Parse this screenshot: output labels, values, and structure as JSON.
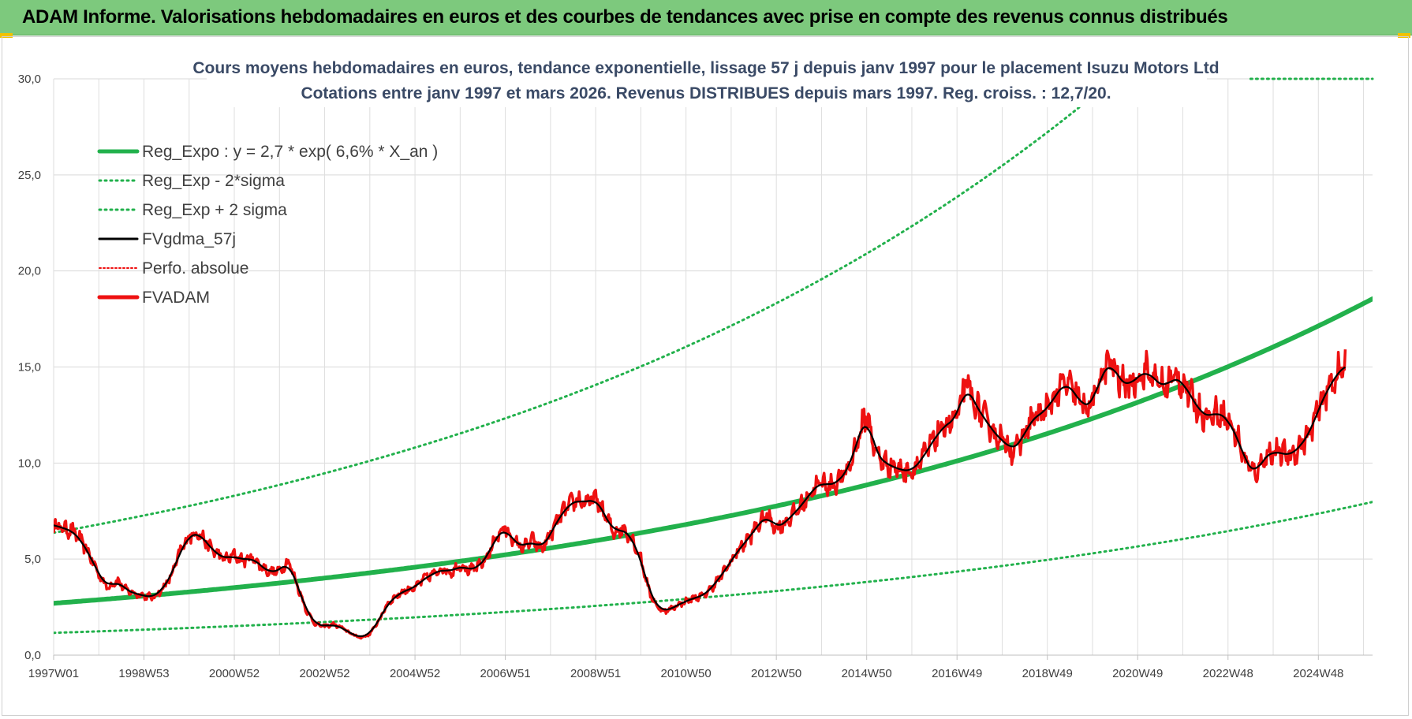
{
  "banner": {
    "title": "ADAM Informe. Valorisations hebdomadaires en euros et des courbes de tendances avec prise en compte des revenus connus distribués"
  },
  "colors": {
    "banner_bg": "#7dc97d",
    "trend_green": "#22b14c",
    "fv_red": "#ee1111",
    "smooth_black": "#000000"
  },
  "chart_data": {
    "type": "line",
    "title": "Cours moyens hebdomadaires en euros, tendance exponentielle, lissage 57 j depuis janv 1997 pour le placement Isuzu Motors Ltd",
    "subtitle": "Cotations entre janv 1997 et mars 2026. Revenus DISTRIBUES depuis mars 1997. Reg. croiss. : 12,7/20.",
    "xlabel": "",
    "ylabel": "",
    "x_tick_labels": [
      "1997W01",
      "1998W53",
      "2000W52",
      "2002W52",
      "2004W52",
      "2006W51",
      "2008W51",
      "2010W50",
      "2012W50",
      "2014W50",
      "2016W49",
      "2018W49",
      "2020W49",
      "2022W48",
      "2024W48"
    ],
    "x_range": [
      1997.0,
      2026.2
    ],
    "y_ticks": [
      "0,0",
      "5,0",
      "10,0",
      "15,0",
      "20,0",
      "25,0",
      "30,0"
    ],
    "ylim": [
      0,
      30
    ],
    "grid": true,
    "legend_position": "top-left",
    "trend": {
      "a": 2.7,
      "rate": 0.066,
      "sigma_factor_lower": 0.43,
      "sigma_factor_upper": 2.36
    },
    "series": [
      {
        "name": "Reg_Expo : y = 2,7 * exp( 6,6% *  X_an )",
        "style": "solid-thick",
        "color": "#22b14c"
      },
      {
        "name": "Reg_Exp - 2*sigma",
        "style": "dotted",
        "color": "#22b14c"
      },
      {
        "name": "Reg_Exp + 2 sigma",
        "style": "dotted",
        "color": "#22b14c"
      },
      {
        "name": "FVgdma_57j",
        "style": "solid",
        "color": "#000000"
      },
      {
        "name": "Perfo. absolue",
        "style": "dotted",
        "color": "#ee1111"
      },
      {
        "name": "FVADAM",
        "style": "solid-thick",
        "color": "#ee1111",
        "points": [
          [
            1997.0,
            6.8
          ],
          [
            1997.2,
            6.6
          ],
          [
            1997.4,
            6.5
          ],
          [
            1997.6,
            6.0
          ],
          [
            1997.8,
            5.2
          ],
          [
            1998.0,
            4.2
          ],
          [
            1998.2,
            3.5
          ],
          [
            1998.4,
            3.9
          ],
          [
            1998.6,
            3.4
          ],
          [
            1998.8,
            3.2
          ],
          [
            1999.0,
            3.1
          ],
          [
            1999.2,
            3.0
          ],
          [
            1999.4,
            3.4
          ],
          [
            1999.6,
            4.1
          ],
          [
            1999.8,
            5.4
          ],
          [
            2000.0,
            6.2
          ],
          [
            2000.2,
            6.4
          ],
          [
            2000.4,
            5.8
          ],
          [
            2000.6,
            5.3
          ],
          [
            2000.8,
            5.0
          ],
          [
            2001.0,
            5.2
          ],
          [
            2001.2,
            4.9
          ],
          [
            2001.4,
            5.1
          ],
          [
            2001.6,
            4.6
          ],
          [
            2001.8,
            4.3
          ],
          [
            2002.0,
            4.4
          ],
          [
            2002.2,
            4.9
          ],
          [
            2002.4,
            3.6
          ],
          [
            2002.6,
            2.3
          ],
          [
            2002.8,
            1.6
          ],
          [
            2003.0,
            1.5
          ],
          [
            2003.2,
            1.6
          ],
          [
            2003.4,
            1.4
          ],
          [
            2003.6,
            1.1
          ],
          [
            2003.8,
            0.9
          ],
          [
            2004.0,
            1.1
          ],
          [
            2004.2,
            1.8
          ],
          [
            2004.4,
            2.7
          ],
          [
            2004.6,
            3.1
          ],
          [
            2004.8,
            3.4
          ],
          [
            2005.0,
            3.5
          ],
          [
            2005.2,
            4.0
          ],
          [
            2005.4,
            4.2
          ],
          [
            2005.6,
            4.5
          ],
          [
            2005.8,
            4.3
          ],
          [
            2006.0,
            4.7
          ],
          [
            2006.2,
            4.4
          ],
          [
            2006.4,
            4.6
          ],
          [
            2006.6,
            5.1
          ],
          [
            2006.8,
            6.2
          ],
          [
            2007.0,
            6.6
          ],
          [
            2007.2,
            5.9
          ],
          [
            2007.4,
            5.6
          ],
          [
            2007.6,
            6.0
          ],
          [
            2007.8,
            5.5
          ],
          [
            2008.0,
            6.3
          ],
          [
            2008.2,
            7.2
          ],
          [
            2008.4,
            7.8
          ],
          [
            2008.6,
            8.1
          ],
          [
            2008.8,
            7.9
          ],
          [
            2009.0,
            8.2
          ],
          [
            2009.2,
            7.3
          ],
          [
            2009.4,
            6.4
          ],
          [
            2009.6,
            6.6
          ],
          [
            2009.8,
            6.1
          ],
          [
            2010.0,
            5.0
          ],
          [
            2010.2,
            3.2
          ],
          [
            2010.4,
            2.4
          ],
          [
            2010.6,
            2.3
          ],
          [
            2010.8,
            2.6
          ],
          [
            2011.0,
            2.8
          ],
          [
            2011.2,
            3.0
          ],
          [
            2011.4,
            3.1
          ],
          [
            2011.6,
            3.6
          ],
          [
            2011.8,
            4.2
          ],
          [
            2012.0,
            4.9
          ],
          [
            2012.2,
            5.6
          ],
          [
            2012.4,
            6.1
          ],
          [
            2012.6,
            6.8
          ],
          [
            2012.8,
            7.3
          ],
          [
            2013.0,
            6.6
          ],
          [
            2013.2,
            6.9
          ],
          [
            2013.4,
            7.4
          ],
          [
            2013.6,
            7.9
          ],
          [
            2013.8,
            8.6
          ],
          [
            2014.0,
            9.0
          ],
          [
            2014.2,
            8.8
          ],
          [
            2014.4,
            9.1
          ],
          [
            2014.6,
            9.7
          ],
          [
            2014.8,
            11.2
          ],
          [
            2015.0,
            12.6
          ],
          [
            2015.2,
            10.5
          ],
          [
            2015.4,
            10.0
          ],
          [
            2015.6,
            9.8
          ],
          [
            2015.8,
            9.6
          ],
          [
            2016.0,
            9.6
          ],
          [
            2016.2,
            10.1
          ],
          [
            2016.4,
            10.9
          ],
          [
            2016.6,
            11.6
          ],
          [
            2016.8,
            12.1
          ],
          [
            2017.0,
            12.3
          ],
          [
            2017.2,
            14.2
          ],
          [
            2017.4,
            13.0
          ],
          [
            2017.6,
            12.4
          ],
          [
            2017.8,
            11.6
          ],
          [
            2018.0,
            11.2
          ],
          [
            2018.2,
            10.7
          ],
          [
            2018.4,
            11.0
          ],
          [
            2018.6,
            12.1
          ],
          [
            2018.8,
            12.5
          ],
          [
            2019.0,
            12.8
          ],
          [
            2019.2,
            13.6
          ],
          [
            2019.4,
            14.2
          ],
          [
            2019.6,
            13.7
          ],
          [
            2019.8,
            12.9
          ],
          [
            2020.0,
            13.1
          ],
          [
            2020.2,
            14.6
          ],
          [
            2020.4,
            15.3
          ],
          [
            2020.6,
            14.3
          ],
          [
            2020.8,
            14.0
          ],
          [
            2021.0,
            14.5
          ],
          [
            2021.2,
            14.8
          ],
          [
            2021.4,
            14.3
          ],
          [
            2021.6,
            13.9
          ],
          [
            2021.8,
            14.5
          ],
          [
            2022.0,
            14.2
          ],
          [
            2022.2,
            13.4
          ],
          [
            2022.4,
            12.6
          ],
          [
            2022.6,
            12.4
          ],
          [
            2022.8,
            12.7
          ],
          [
            2023.0,
            12.2
          ],
          [
            2023.2,
            11.4
          ],
          [
            2023.4,
            10.0
          ],
          [
            2023.6,
            9.4
          ],
          [
            2023.8,
            10.3
          ],
          [
            2024.0,
            10.6
          ],
          [
            2024.2,
            10.5
          ],
          [
            2024.4,
            10.4
          ],
          [
            2024.6,
            10.9
          ],
          [
            2024.8,
            11.5
          ],
          [
            2025.0,
            12.8
          ],
          [
            2025.2,
            13.8
          ],
          [
            2025.4,
            14.6
          ],
          [
            2025.6,
            15.1
          ]
        ]
      }
    ]
  }
}
